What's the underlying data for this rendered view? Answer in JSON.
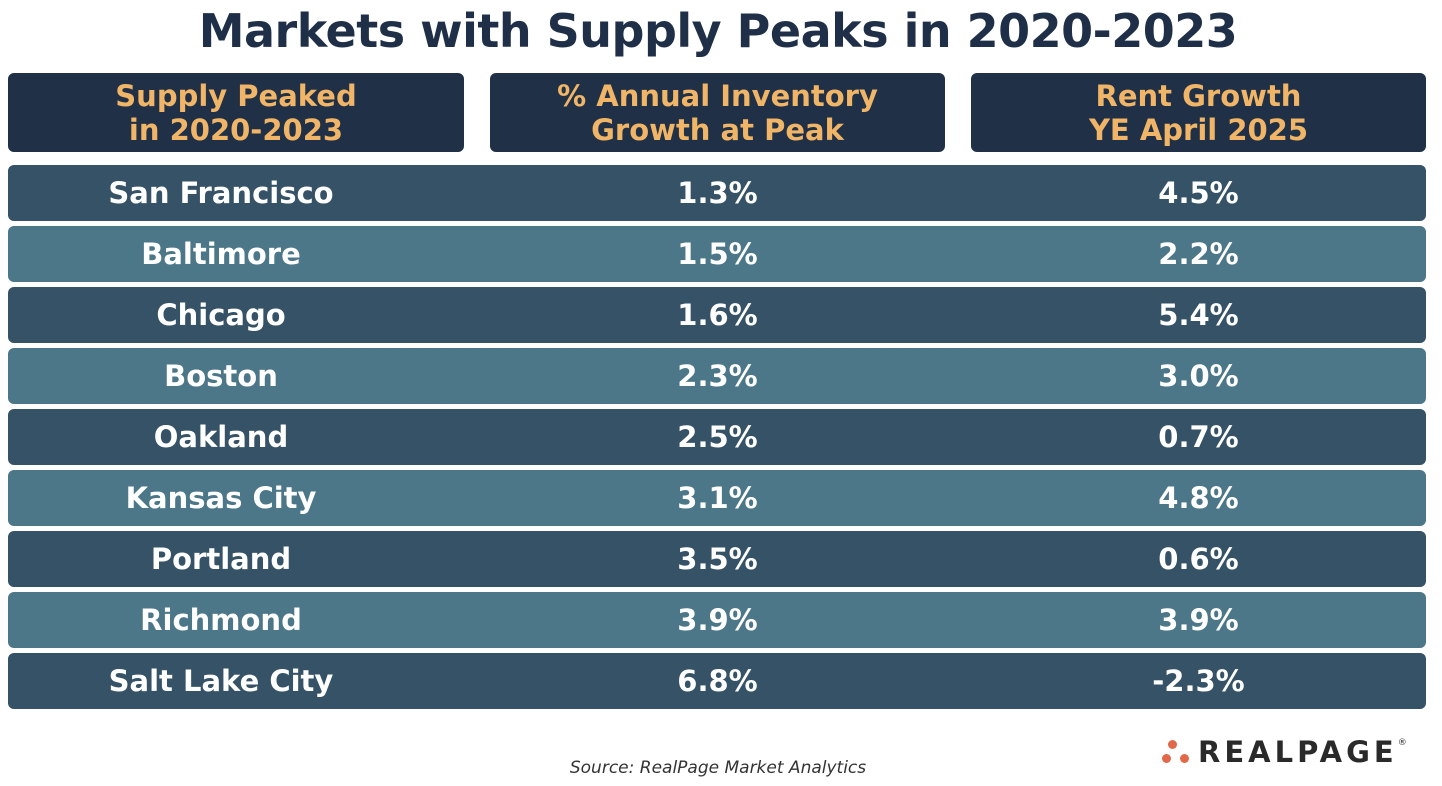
{
  "chart_data": {
    "type": "table",
    "title": "Markets with Supply Peaks in 2020-2023",
    "columns": [
      [
        "Supply Peaked",
        "in 2020-2023"
      ],
      [
        "% Annual Inventory",
        "Growth at Peak"
      ],
      [
        "Rent Growth",
        "YE April 2025"
      ]
    ],
    "rows": [
      {
        "market": "San Francisco",
        "inventory_growth": "1.3%",
        "rent_growth": "4.5%"
      },
      {
        "market": "Baltimore",
        "inventory_growth": "1.5%",
        "rent_growth": "2.2%"
      },
      {
        "market": "Chicago",
        "inventory_growth": "1.6%",
        "rent_growth": "5.4%"
      },
      {
        "market": "Boston",
        "inventory_growth": "2.3%",
        "rent_growth": "3.0%"
      },
      {
        "market": "Oakland",
        "inventory_growth": "2.5%",
        "rent_growth": "0.7%"
      },
      {
        "market": "Kansas City",
        "inventory_growth": "3.1%",
        "rent_growth": "4.8%"
      },
      {
        "market": "Portland",
        "inventory_growth": "3.5%",
        "rent_growth": "0.6%"
      },
      {
        "market": "Richmond",
        "inventory_growth": "3.9%",
        "rent_growth": "3.9%"
      },
      {
        "market": "Salt Lake City",
        "inventory_growth": "6.8%",
        "rent_growth": "-2.3%"
      }
    ],
    "source": "Source: RealPage Market Analytics"
  },
  "logo": {
    "text": "REALPAGE",
    "mark": "®"
  },
  "colors": {
    "title": "#1f2f48",
    "header_bg": "#203047",
    "header_text": "#f0b567",
    "row_dark": "#355266",
    "row_light": "#4b7788",
    "logo_accent": "#e2684a"
  }
}
